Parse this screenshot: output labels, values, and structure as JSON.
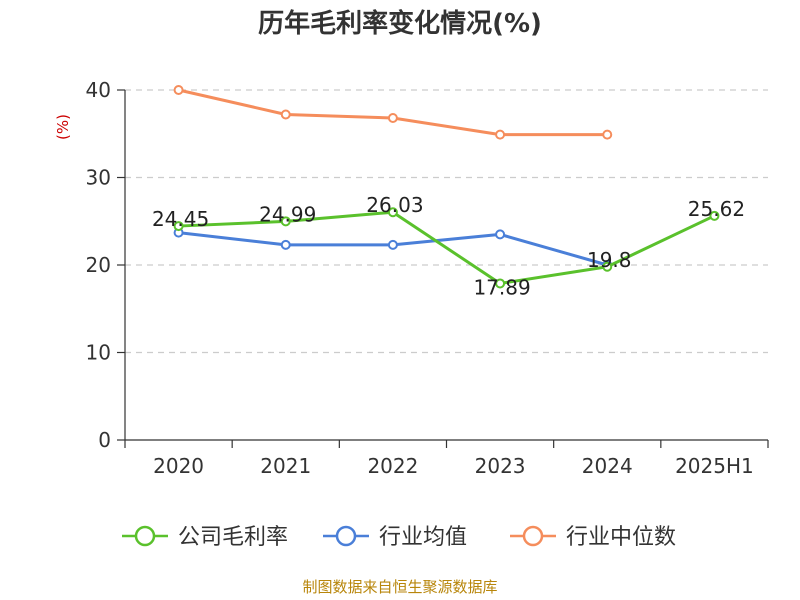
{
  "chart_data": {
    "type": "line",
    "title": "历年毛利率变化情况(%)",
    "unit_label": "(%)",
    "categories": [
      "2020",
      "2021",
      "2022",
      "2023",
      "2024",
      "2025H1"
    ],
    "ylim": [
      0,
      40
    ],
    "yticks": [
      "0",
      "10",
      "20",
      "30",
      "40"
    ],
    "grid": true,
    "legend_position": "bottom",
    "series": [
      {
        "name": "公司毛利率",
        "color": "#5ac12c",
        "values": [
          24.45,
          24.99,
          26.03,
          17.89,
          19.8,
          25.62
        ],
        "labels": [
          "24.45",
          "24.99",
          "26.03",
          "17.89",
          "19.8",
          "25.62"
        ]
      },
      {
        "name": "行业均值",
        "color": "#4a7fd8",
        "values": [
          23.7,
          22.3,
          22.3,
          23.5,
          20.0,
          null
        ]
      },
      {
        "name": "行业中位数",
        "color": "#f58d5c",
        "values": [
          40.0,
          37.2,
          36.8,
          34.9,
          34.9,
          null
        ]
      }
    ],
    "source": "制图数据来自恒生聚源数据库"
  }
}
